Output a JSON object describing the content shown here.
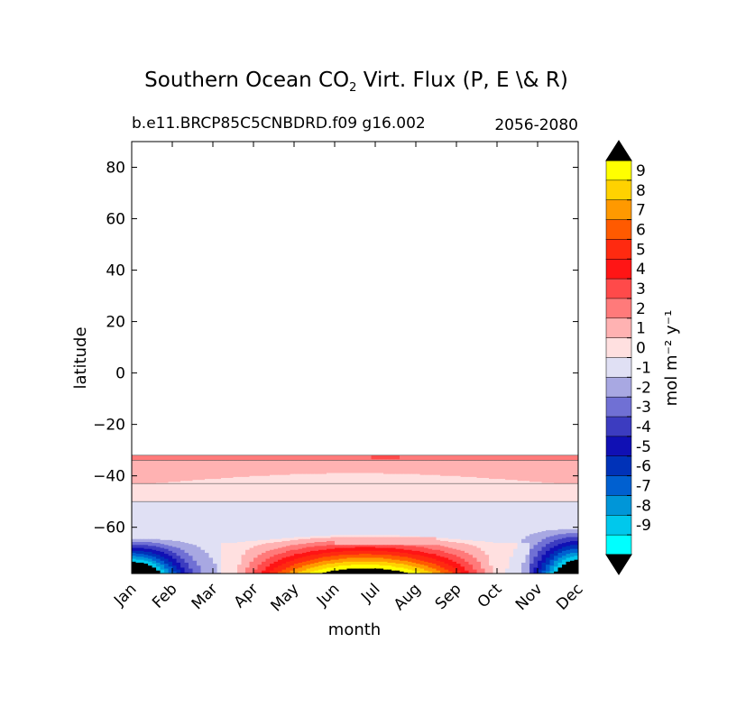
{
  "chart_data": {
    "type": "heatmap",
    "title_main": "Southern Ocean CO",
    "title_sub": "2",
    "title_rest": " Virt. Flux (P, E \\& R)",
    "subtitle_left": "b.e11.BRCP85C5CNBDRD.f09 g16.002",
    "subtitle_right": "2056-2080",
    "xlabel": "month",
    "ylabel": "latitude",
    "x_ticks": [
      "Jan",
      "Feb",
      "Mar",
      "Apr",
      "May",
      "Jun",
      "Jul",
      "Aug",
      "Sep",
      "Oct",
      "Nov",
      "Dec"
    ],
    "y_ticks": [
      80,
      60,
      40,
      20,
      0,
      -20,
      -40,
      -60
    ],
    "y_tick_labels": [
      "80",
      "60",
      "40",
      "20",
      "0",
      "−20",
      "−40",
      "−60"
    ],
    "ylim": [
      -78,
      90
    ],
    "data_lat_range": [
      -78,
      -32
    ],
    "colorbar": {
      "label": "mol m⁻² y⁻¹",
      "tick_labels": [
        "9",
        "8",
        "7",
        "6",
        "5",
        "4",
        "3",
        "2",
        "1",
        "0",
        "-1",
        "-2",
        "-3",
        "-4",
        "-5",
        "-6",
        "-7",
        "-8",
        "-9"
      ],
      "levels": [
        9,
        8,
        7,
        6,
        5,
        4,
        3,
        2,
        1,
        0,
        -1,
        -2,
        -3,
        -4,
        -5,
        -6,
        -7,
        -8,
        -9,
        -10
      ],
      "colors": [
        "#ffff00",
        "#ffd200",
        "#ff9900",
        "#ff5a00",
        "#ff2a10",
        "#ff1515",
        "#ff4a4a",
        "#ff7a7a",
        "#ffb2b2",
        "#ffe0e0",
        "#e0e0f4",
        "#a8a8e2",
        "#7070d4",
        "#3c3cc0",
        "#1010b4",
        "#0032b8",
        "#0060d0",
        "#0096d8",
        "#00c8ec",
        "#00ffff"
      ],
      "extend_colors": [
        "#000000",
        "#000000"
      ]
    },
    "description_bands": [
      {
        "lat_top": -32,
        "lat_bottom": -34,
        "value": 1.5
      },
      {
        "lat_top": -34,
        "lat_bottom": -43,
        "value": 0.5
      },
      {
        "lat_top": -43,
        "lat_bottom": -50,
        "value": -0.5
      },
      {
        "lat_top": -50,
        "lat_bottom": -63,
        "value": -1.5
      }
    ]
  }
}
